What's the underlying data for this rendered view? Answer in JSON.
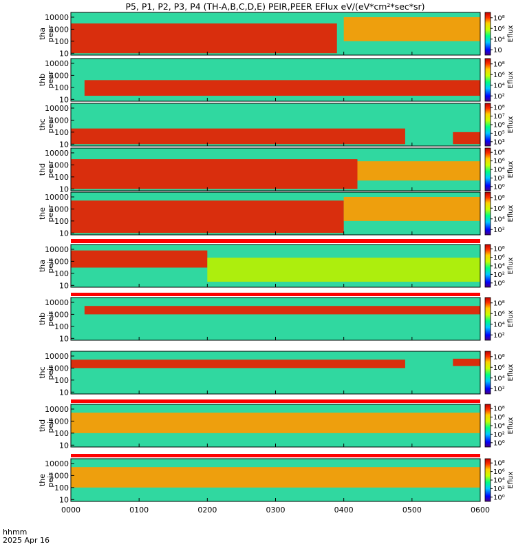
{
  "chart_data": {
    "type": "heatmap",
    "title": "P5, P1, P2, P3, P4 (TH-A,B,C,D,E) PEIR,PEER EFlux eV/(eV*cm²*sec*sr)",
    "x": {
      "ticks": [
        "0000",
        "0100",
        "0200",
        "0300",
        "0400",
        "0500",
        "0600"
      ],
      "range_hours": [
        0,
        6
      ],
      "label_line1": "hhmm",
      "label_line2": "2025 Apr 16"
    },
    "y": {
      "scale": "log",
      "range_eV": [
        7,
        25000
      ],
      "ticks": [
        "10",
        "100",
        "1000",
        "10000"
      ]
    },
    "colorbar": {
      "label": "Eflux",
      "scale": "log"
    },
    "panels": [
      {
        "probe": "tha",
        "species": "peer",
        "label": "tha peer",
        "cb_ticks": [
          "10",
          "10⁴",
          "10⁶",
          "10⁸"
        ],
        "spectra": [
          {
            "x": [
              0.0,
              0.3,
              3.9
            ],
            "band_eV": [
              10,
              3000
            ],
            "level": "high"
          },
          {
            "x": [
              4.0,
              6.0
            ],
            "band_eV": [
              100,
              10000
            ],
            "level": "medium"
          }
        ]
      },
      {
        "probe": "thb",
        "species": "peer",
        "label": "thb peer",
        "cb_ticks": [
          "10²",
          "10⁴",
          "10⁶",
          "10⁸"
        ],
        "spectra": [
          {
            "x": [
              0.2,
              6.0
            ],
            "band_eV": [
              20,
              400
            ],
            "level": "high"
          }
        ]
      },
      {
        "probe": "thc",
        "species": "peer",
        "label": "thc peer",
        "cb_ticks": [
          "10³",
          "10⁵",
          "10⁶",
          "10⁷",
          "10⁸"
        ],
        "spectra": [
          {
            "x": [
              0.0,
              4.9
            ],
            "band_eV": [
              10,
              200
            ],
            "level": "high"
          },
          {
            "x": [
              5.6,
              6.0
            ],
            "band_eV": [
              10,
              100
            ],
            "level": "high"
          }
        ]
      },
      {
        "probe": "thd",
        "species": "peer",
        "label": "thd peer",
        "cb_ticks": [
          "10⁰",
          "10²",
          "10⁴",
          "10⁶",
          "10⁸"
        ],
        "spectra": [
          {
            "x": [
              0.0,
              4.2
            ],
            "band_eV": [
              10,
              3000
            ],
            "level": "high"
          },
          {
            "x": [
              4.2,
              6.0
            ],
            "band_eV": [
              50,
              2000
            ],
            "level": "medium"
          }
        ]
      },
      {
        "probe": "the",
        "species": "peer",
        "label": "the peer",
        "cb_ticks": [
          "10²",
          "10⁴",
          "10⁶",
          "10⁸"
        ],
        "spectra": [
          {
            "x": [
              0.0,
              4.0
            ],
            "band_eV": [
              10,
              5000
            ],
            "level": "high"
          },
          {
            "x": [
              4.0,
              6.0
            ],
            "band_eV": [
              100,
              10000
            ],
            "level": "medium"
          }
        ]
      },
      {
        "probe": "tha",
        "species": "peir",
        "label": "tha peir",
        "cb_ticks": [
          "10⁰",
          "10²",
          "10⁴",
          "10⁶",
          "10⁸"
        ],
        "spectra": [
          {
            "x": [
              0.0,
              2.0
            ],
            "band_eV": [
              300,
              8000
            ],
            "level": "high"
          },
          {
            "x": [
              2.0,
              6.0
            ],
            "band_eV": [
              20,
              2000
            ],
            "level": "low"
          }
        ]
      },
      {
        "probe": "thb",
        "species": "peir",
        "label": "thb peir",
        "cb_ticks": [
          "10²",
          "10⁴",
          "10⁶",
          "10⁸"
        ],
        "spectra": [
          {
            "x": [
              0.2,
              6.0
            ],
            "band_eV": [
              1000,
              5000
            ],
            "level": "high"
          }
        ]
      },
      {
        "probe": "thc",
        "species": "peir",
        "label": "thc peir",
        "cb_ticks": [
          "10²",
          "10⁴",
          "10⁶",
          "10⁸"
        ],
        "spectra": [
          {
            "x": [
              0.0,
              4.9
            ],
            "band_eV": [
              1000,
              5000
            ],
            "level": "high"
          },
          {
            "x": [
              5.6,
              6.0
            ],
            "band_eV": [
              1500,
              6000
            ],
            "level": "high"
          }
        ]
      },
      {
        "probe": "thd",
        "species": "peir",
        "label": "thd peir",
        "cb_ticks": [
          "10⁰",
          "10²",
          "10⁴",
          "10⁶",
          "10⁸"
        ],
        "spectra": [
          {
            "x": [
              0.0,
              6.0
            ],
            "band_eV": [
              100,
              5000
            ],
            "level": "medium"
          }
        ]
      },
      {
        "probe": "the",
        "species": "peir",
        "label": "the peir",
        "cb_ticks": [
          "10⁰",
          "10²",
          "10⁴",
          "10⁶",
          "10⁸"
        ],
        "spectra": [
          {
            "x": [
              0.0,
              6.0
            ],
            "band_eV": [
              100,
              5000
            ],
            "level": "medium"
          }
        ]
      }
    ]
  }
}
